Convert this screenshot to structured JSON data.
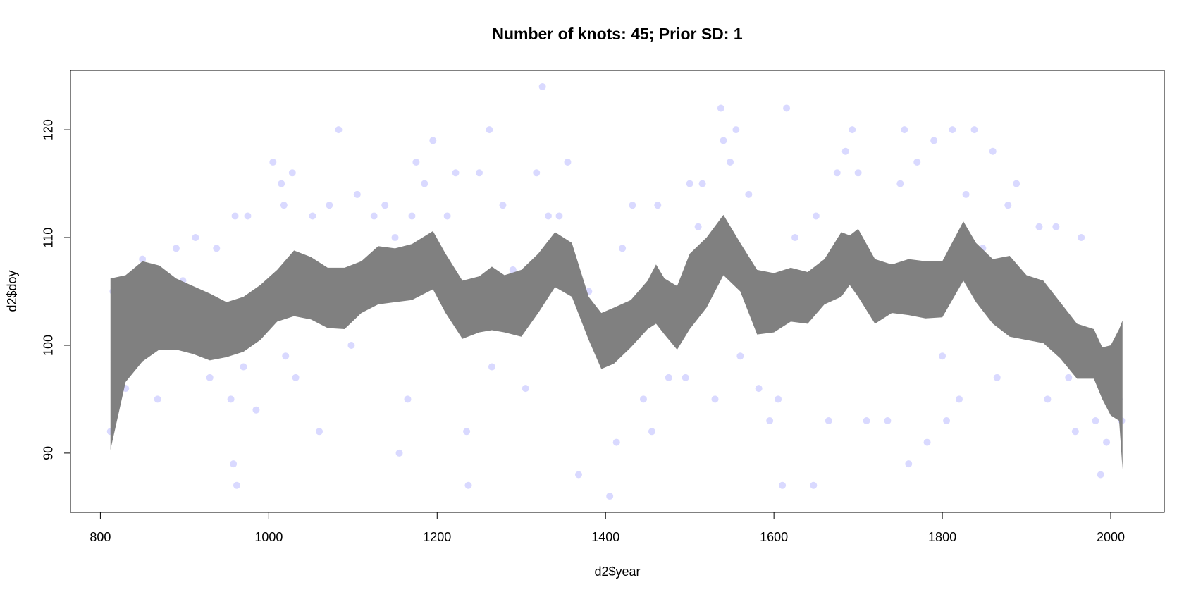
{
  "chart_data": {
    "type": "scatter",
    "title": "Number of knots: 45; Prior SD: 1",
    "x_label": "d2$year",
    "y_label": "d2$doy",
    "xlim": [
      764.5,
      2063.6
    ],
    "ylim": [
      84.5,
      125.5
    ],
    "xticks": [
      800,
      1000,
      1200,
      1400,
      1600,
      1800,
      2000
    ],
    "yticks": [
      90,
      100,
      110,
      120
    ],
    "points": {
      "color": "#0000ff",
      "x": [
        812,
        815,
        830,
        850,
        855,
        868,
        890,
        893,
        898,
        913,
        930,
        938,
        955,
        958,
        962,
        960,
        965,
        970,
        975,
        985,
        1005,
        1015,
        1018,
        1020,
        1028,
        1032,
        1040,
        1052,
        1060,
        1072,
        1083,
        1090,
        1098,
        1105,
        1112,
        1125,
        1138,
        1150,
        1155,
        1165,
        1170,
        1175,
        1185,
        1195,
        1200,
        1212,
        1222,
        1235,
        1237,
        1250,
        1262,
        1265,
        1278,
        1290,
        1305,
        1318,
        1325,
        1332,
        1345,
        1355,
        1368,
        1380,
        1392,
        1405,
        1413,
        1420,
        1432,
        1445,
        1455,
        1462,
        1475,
        1490,
        1495,
        1500,
        1510,
        1515,
        1530,
        1537,
        1540,
        1548,
        1555,
        1560,
        1570,
        1582,
        1595,
        1605,
        1610,
        1615,
        1625,
        1640,
        1647,
        1650,
        1665,
        1675,
        1685,
        1693,
        1700,
        1710,
        1720,
        1735,
        1750,
        1755,
        1760,
        1770,
        1782,
        1790,
        1800,
        1805,
        1812,
        1820,
        1828,
        1838,
        1848,
        1860,
        1865,
        1878,
        1888,
        1900,
        1915,
        1925,
        1935,
        1950,
        1958,
        1965,
        1975,
        1982,
        1988,
        1995,
        2000,
        2005,
        2010,
        2013
      ],
      "y": [
        92,
        105,
        96,
        108,
        104,
        95,
        109,
        104,
        106,
        110,
        97,
        109,
        95,
        89,
        87,
        112,
        104,
        98,
        112,
        94,
        117,
        115,
        113,
        99,
        116,
        97,
        103,
        112,
        92,
        113,
        120,
        105,
        100,
        114,
        105,
        112,
        113,
        110,
        90,
        95,
        112,
        117,
        115,
        119,
        108,
        112,
        116,
        92,
        87,
        116,
        120,
        98,
        113,
        107,
        96,
        116,
        124,
        112,
        112,
        117,
        88,
        105,
        101,
        86,
        91,
        109,
        113,
        95,
        92,
        113,
        97,
        104,
        97,
        115,
        111,
        115,
        95,
        122,
        119,
        117,
        120,
        99,
        114,
        96,
        93,
        95,
        87,
        122,
        110,
        105,
        87,
        112,
        93,
        116,
        118,
        120,
        116,
        93,
        105,
        93,
        115,
        120,
        89,
        117,
        91,
        119,
        99,
        93,
        120,
        95,
        114,
        120,
        109,
        118,
        97,
        113,
        115,
        101,
        111,
        95,
        111,
        97,
        92,
        110,
        99,
        93,
        88,
        91,
        95,
        99,
        95,
        93
      ]
    },
    "band": {
      "color": "#808080",
      "x": [
        812,
        830,
        850,
        870,
        890,
        910,
        930,
        950,
        970,
        990,
        1010,
        1030,
        1050,
        1070,
        1090,
        1110,
        1130,
        1150,
        1170,
        1195,
        1210,
        1230,
        1250,
        1265,
        1280,
        1300,
        1320,
        1340,
        1360,
        1380,
        1395,
        1410,
        1430,
        1450,
        1460,
        1470,
        1485,
        1500,
        1520,
        1540,
        1560,
        1580,
        1600,
        1620,
        1640,
        1660,
        1680,
        1690,
        1700,
        1720,
        1740,
        1760,
        1780,
        1800,
        1825,
        1840,
        1860,
        1880,
        1900,
        1920,
        1940,
        1960,
        1980,
        1990,
        2000,
        2010,
        2014
      ],
      "upper": [
        106.2,
        106.5,
        107.8,
        107.4,
        106.2,
        105.5,
        104.8,
        104.0,
        104.5,
        105.6,
        107.0,
        108.8,
        108.2,
        107.2,
        107.2,
        107.8,
        109.2,
        109.0,
        109.4,
        110.6,
        108.5,
        106.0,
        106.4,
        107.3,
        106.5,
        107.0,
        108.5,
        110.5,
        109.5,
        104.5,
        103.0,
        103.5,
        104.2,
        106.0,
        107.5,
        106.2,
        105.5,
        108.5,
        110.0,
        112.1,
        109.5,
        107.0,
        106.7,
        107.2,
        106.8,
        108.0,
        110.5,
        110.2,
        110.8,
        108.0,
        107.5,
        108.0,
        107.8,
        107.8,
        111.5,
        109.5,
        108.0,
        108.3,
        106.5,
        106.0,
        104.0,
        102.0,
        101.5,
        99.8,
        100.0,
        101.5,
        102.3
      ],
      "lower": [
        90.3,
        96.6,
        98.5,
        99.6,
        99.6,
        99.2,
        98.6,
        98.9,
        99.4,
        100.5,
        102.2,
        102.7,
        102.4,
        101.6,
        101.5,
        103.0,
        103.8,
        104.0,
        104.2,
        105.2,
        103.0,
        100.6,
        101.2,
        101.4,
        101.2,
        100.8,
        103.0,
        105.4,
        104.5,
        100.5,
        97.8,
        98.3,
        99.8,
        101.5,
        102.0,
        101.0,
        99.6,
        101.5,
        103.5,
        106.5,
        105.0,
        101.0,
        101.2,
        102.2,
        102.0,
        103.8,
        104.5,
        105.6,
        104.5,
        102.0,
        103.0,
        102.8,
        102.5,
        102.6,
        106.0,
        104.0,
        102.0,
        100.8,
        100.5,
        100.2,
        98.8,
        96.9,
        96.9,
        95.0,
        93.5,
        93.0,
        88.5
      ]
    }
  }
}
